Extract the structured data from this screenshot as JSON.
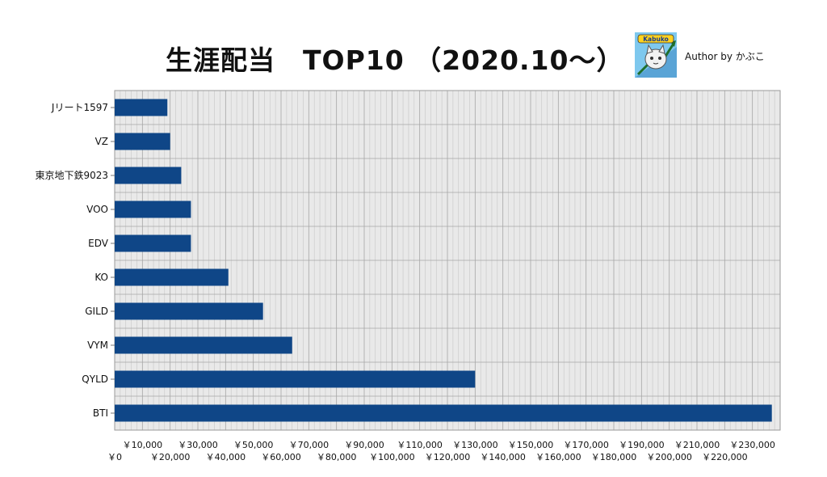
{
  "header": {
    "title": "生涯配当　TOP10 （2020.10～）",
    "author": "Author by かぶこ",
    "logo_text": "Kabuko"
  },
  "chart_data": {
    "type": "bar",
    "orientation": "horizontal",
    "title": "生涯配当　TOP10 （2020.10～）",
    "categories": [
      "Jリート1597",
      "VZ",
      "東京地下鉄9023",
      "VOO",
      "EDV",
      "KO",
      "GILD",
      "VYM",
      "QYLD",
      "BTI"
    ],
    "values": [
      19000,
      20000,
      24000,
      27500,
      27500,
      41000,
      53500,
      64000,
      130000,
      237000
    ],
    "xlim": [
      0,
      240000
    ],
    "x_ticks_upper": [
      "￥10,000",
      "￥30,000",
      "￥50,000",
      "￥70,000",
      "￥90,000",
      "￥110,000",
      "￥130,000",
      "￥150,000",
      "￥170,000",
      "￥190,000",
      "￥210,000",
      "￥230,000"
    ],
    "x_ticks_lower": [
      "￥0",
      "￥20,000",
      "￥40,000",
      "￥60,000",
      "￥80,000",
      "￥100,000",
      "￥120,000",
      "￥140,000",
      "￥160,000",
      "￥180,000",
      "￥200,000",
      "￥220,000"
    ],
    "xlabel": "",
    "ylabel": "",
    "grid": true,
    "legend": "none",
    "colors": {
      "bar": "#0f4687",
      "plot_bg": "#e9e9e9",
      "grid_minor": "#c6c6c6",
      "grid_major": "#a6a6a6"
    }
  }
}
